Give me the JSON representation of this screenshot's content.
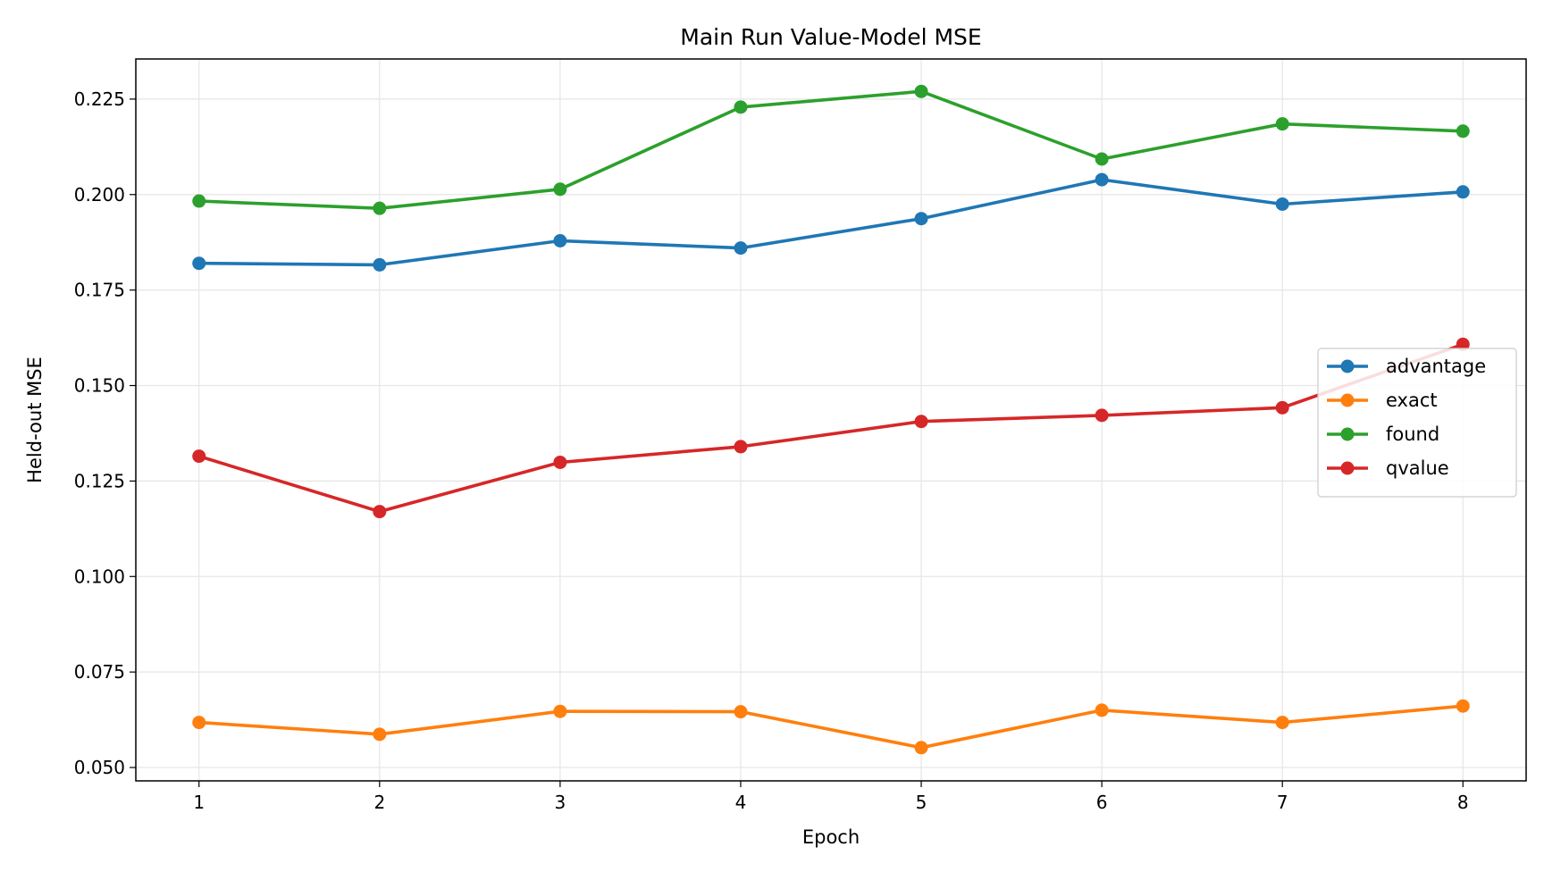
{
  "chart_data": {
    "type": "line",
    "title": "Main Run Value-Model MSE",
    "xlabel": "Epoch",
    "ylabel": "Held-out MSE",
    "x": [
      1,
      2,
      3,
      4,
      5,
      6,
      7,
      8
    ],
    "xlim": [
      0.65,
      8.35
    ],
    "ylim": [
      0.0465,
      0.2355
    ],
    "xticks": [
      "1",
      "2",
      "3",
      "4",
      "5",
      "6",
      "7",
      "8"
    ],
    "yticks": [
      0.05,
      0.075,
      0.1,
      0.125,
      0.15,
      0.175,
      0.2,
      0.225
    ],
    "ytick_labels": [
      "0.050",
      "0.075",
      "0.100",
      "0.125",
      "0.150",
      "0.175",
      "0.200",
      "0.225"
    ],
    "grid": true,
    "legend_position": "center-right",
    "series": [
      {
        "name": "advantage",
        "color": "#1f77b4",
        "values": [
          0.182,
          0.1816,
          0.1879,
          0.186,
          0.1937,
          0.2039,
          0.1975,
          0.2007
        ]
      },
      {
        "name": "exact",
        "color": "#ff7f0e",
        "values": [
          0.0618,
          0.0587,
          0.0647,
          0.0646,
          0.0552,
          0.065,
          0.0618,
          0.0661
        ]
      },
      {
        "name": "found",
        "color": "#2ca02c",
        "values": [
          0.1983,
          0.1964,
          0.2014,
          0.2229,
          0.227,
          0.2093,
          0.2185,
          0.2166
        ]
      },
      {
        "name": "qvalue",
        "color": "#d62728",
        "values": [
          0.1315,
          0.117,
          0.1299,
          0.134,
          0.1406,
          0.1422,
          0.1442,
          0.1608
        ]
      }
    ]
  }
}
